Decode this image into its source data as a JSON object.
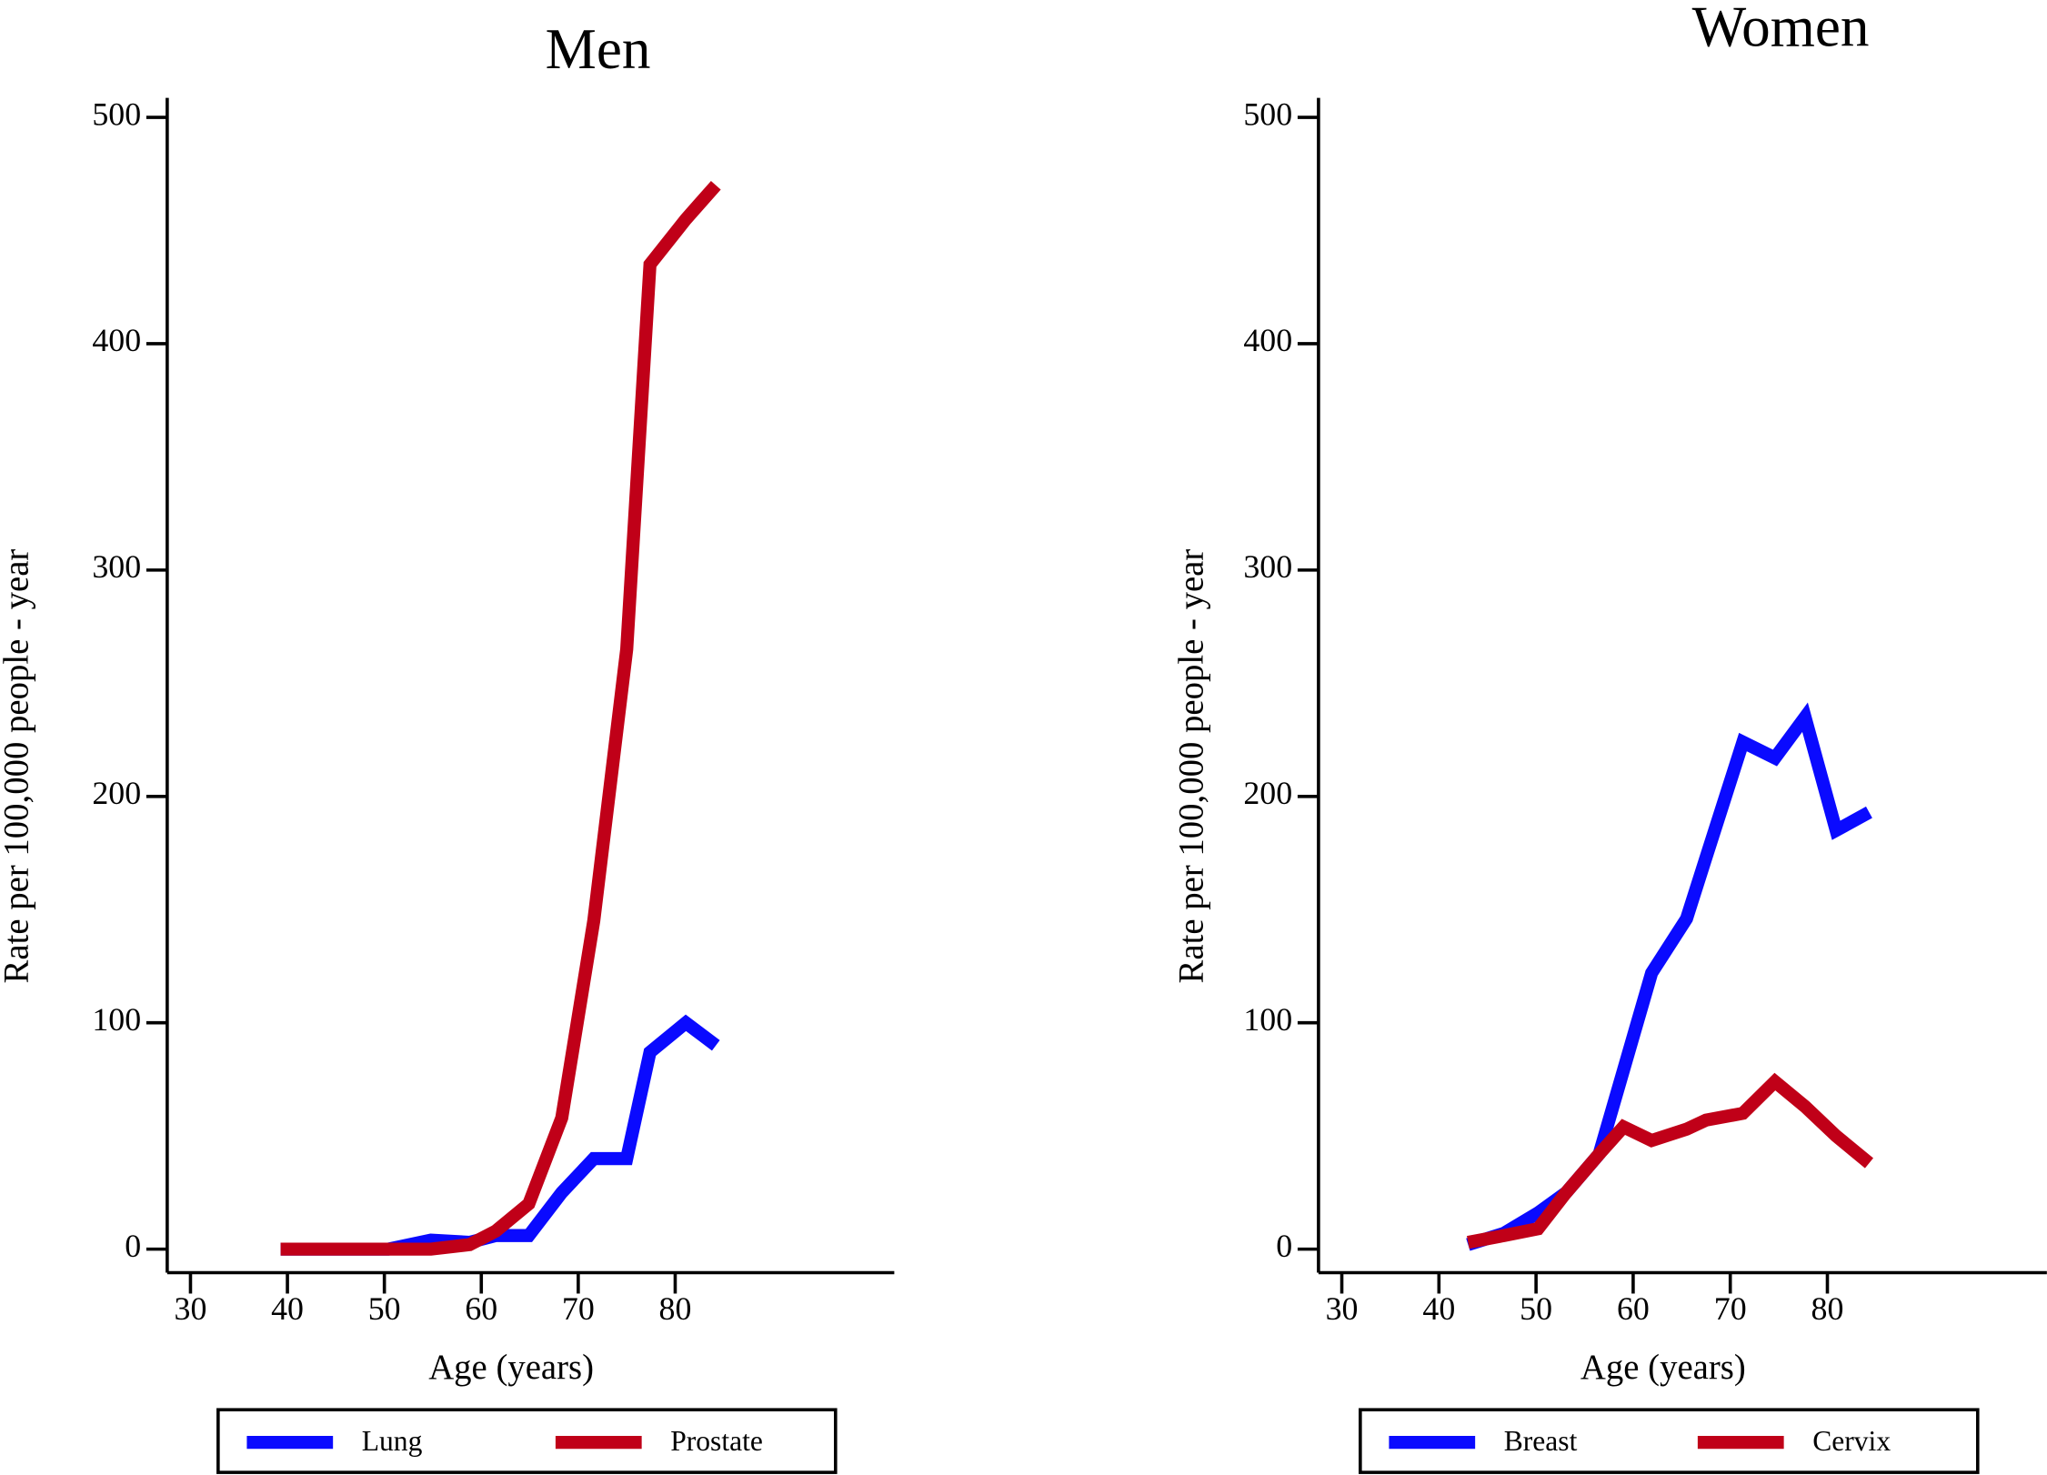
{
  "chart_data": [
    {
      "type": "line",
      "title": "Men",
      "x_label": "Age (years)",
      "y_label": "Rate per 100,000 people - year",
      "x": [
        39.3,
        43,
        46.7,
        50.4,
        54.8,
        58.8,
        61.5,
        64.9,
        68.3,
        71.6,
        75,
        77.4,
        81.1,
        84.2
      ],
      "series": [
        {
          "name": "Lung",
          "color": "#0a0aff",
          "values": [
            0,
            0,
            0,
            0,
            4,
            3,
            6,
            6,
            25,
            40,
            40,
            87,
            100,
            90
          ]
        },
        {
          "name": "Prostate",
          "color": "#c00018",
          "values": [
            0,
            0,
            0,
            0,
            0,
            2,
            8,
            20,
            58,
            145,
            265,
            435,
            455,
            470
          ]
        }
      ],
      "xlim": [
        27.6,
        102.6
      ],
      "xticks": [
        30,
        40,
        50,
        60,
        70,
        80
      ],
      "ylim": [
        -10.4,
        508.6
      ],
      "yticks": [
        0,
        100,
        200,
        300,
        400,
        500
      ],
      "grid": false
    },
    {
      "type": "line",
      "title": "Women",
      "x_label": "Age (years)",
      "y_label": "Rate per 100,000 people - year",
      "x": [
        43,
        46.7,
        50.2,
        53.1,
        56.5,
        59,
        61.9,
        65.5,
        67.5,
        71.3,
        74.6,
        77.7,
        80.9,
        84.3
      ],
      "series": [
        {
          "name": "Breast",
          "color": "#0a0aff",
          "values": [
            2,
            7,
            16,
            25,
            42,
            79,
            122,
            146,
            173,
            224,
            217,
            235,
            185,
            193
          ]
        },
        {
          "name": "Cervix",
          "color": "#c00018",
          "values": [
            3,
            6,
            9,
            25,
            42,
            54,
            48,
            53,
            57,
            60,
            74,
            63,
            50,
            38
          ]
        }
      ],
      "xlim": [
        27.6,
        102.6
      ],
      "xticks": [
        30,
        40,
        50,
        60,
        70,
        80
      ],
      "ylim": [
        -10.4,
        508.6
      ],
      "yticks": [
        0,
        100,
        200,
        300,
        400,
        500
      ],
      "grid": false
    }
  ]
}
